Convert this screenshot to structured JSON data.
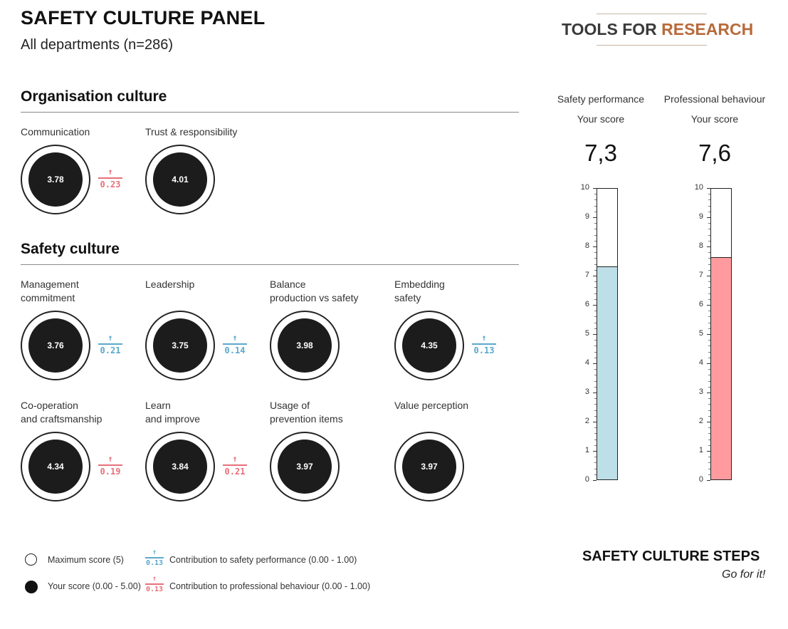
{
  "header": {
    "title": "SAFETY CULTURE PANEL",
    "subtitle": "All departments (n=286)",
    "logo_part1": "TOOLS FOR ",
    "logo_part2": "RESEARCH",
    "logo_colors": {
      "dark": "#3a3a3a",
      "accent": "#b86a3b"
    }
  },
  "organisation": {
    "title": "Organisation culture",
    "items": [
      {
        "label": [
          "Communication"
        ],
        "score": "3.78",
        "contrib": {
          "arrow": "↑",
          "value": "0.23",
          "type": "red"
        }
      },
      {
        "label": [
          "Trust & responsibility"
        ],
        "score": "4.01",
        "contrib": null
      }
    ]
  },
  "safety": {
    "title": "Safety culture",
    "items": [
      {
        "label": [
          "Management",
          "commitment"
        ],
        "score": "3.76",
        "contrib": {
          "arrow": "↑",
          "value": "0.21",
          "type": "blue"
        }
      },
      {
        "label": [
          "Leadership"
        ],
        "score": "3.75",
        "contrib": {
          "arrow": "↑",
          "value": "0.14",
          "type": "blue"
        }
      },
      {
        "label": [
          "Balance",
          "production vs safety"
        ],
        "score": "3.98",
        "contrib": null
      },
      {
        "label": [
          "Embedding",
          "safety"
        ],
        "score": "4.35",
        "contrib": {
          "arrow": "↑",
          "value": "0.13",
          "type": "blue"
        }
      },
      {
        "label": [
          "Co-operation",
          "and craftsmanship"
        ],
        "score": "4.34",
        "contrib": {
          "arrow": "↑",
          "value": "0.19",
          "type": "red"
        }
      },
      {
        "label": [
          "Learn",
          "and improve"
        ],
        "score": "3.84",
        "contrib": {
          "arrow": "↑",
          "value": "0.21",
          "type": "red"
        }
      },
      {
        "label": [
          "Usage of",
          "prevention items"
        ],
        "score": "3.97",
        "contrib": null
      },
      {
        "label": [
          "Value perception"
        ],
        "score": "3.97",
        "contrib": null
      }
    ]
  },
  "meters": [
    {
      "title": "Safety performance",
      "your_score_label": "Your score",
      "score_text": "7,3",
      "value": 7.3,
      "max": 10,
      "color": "#bddfe8"
    },
    {
      "title": "Professional behaviour",
      "your_score_label": "Your score",
      "score_text": "7,6",
      "value": 7.6,
      "max": 10,
      "color": "#ff9b9e"
    }
  ],
  "meter_ticks": [
    "0",
    "1",
    "2",
    "3",
    "4",
    "5",
    "6",
    "7",
    "8",
    "9",
    "10"
  ],
  "colors": {
    "blue": "#5aa9cc",
    "red": "#e8707a"
  },
  "legend": {
    "max_score": "Maximum score (5)",
    "your_score": "Your score (0.00 - 5.00)",
    "contrib_safety": "Contribution to safety performance (0.00 - 1.00)",
    "contrib_prof": "Contribution to professional behaviour (0.00 - 1.00)",
    "mini_blue": {
      "arrow": "↑",
      "value": "0.13"
    },
    "mini_red": {
      "arrow": "↑",
      "value": "0.13"
    }
  },
  "footer": {
    "steps_title": "SAFETY CULTURE STEPS",
    "steps_sub": "Go for it!"
  }
}
